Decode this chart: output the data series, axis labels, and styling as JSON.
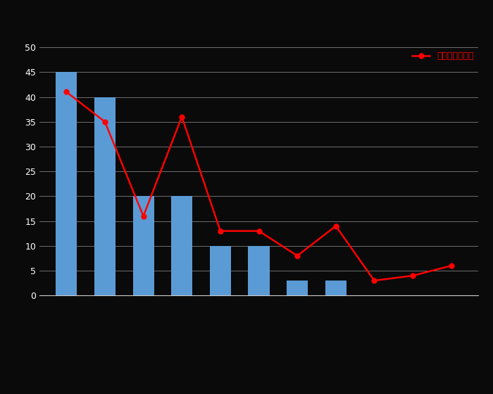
{
  "bar_positions": [
    1,
    2,
    3,
    4,
    5,
    6,
    7,
    8
  ],
  "bar_values": [
    45,
    40,
    20,
    20,
    10,
    10,
    3,
    3
  ],
  "bar_color": "#5b9bd5",
  "bar_width": 0.55,
  "line_x": [
    1,
    2,
    3,
    4,
    5,
    6,
    7,
    8,
    9,
    10,
    11
  ],
  "line_y": [
    41,
    35,
    16,
    36,
    13,
    13,
    8,
    14,
    3,
    4,
    6
  ],
  "line_color": "#ff0000",
  "marker_style": "o",
  "marker_size": 5,
  "marker_facecolor": "#ff0000",
  "legend_label": "全国女性平均値",
  "ylim": [
    0,
    50
  ],
  "yticks": [
    0,
    5,
    10,
    15,
    20,
    25,
    30,
    35,
    40,
    45,
    50
  ],
  "background_color": "#0a0a0a",
  "plot_bg_color": "#0a0a0a",
  "grid_color": "#cccccc",
  "text_color": "#ffffff",
  "legend_text_color": "#ff0000",
  "figsize": [
    7.0,
    5.59
  ],
  "dpi": 100
}
